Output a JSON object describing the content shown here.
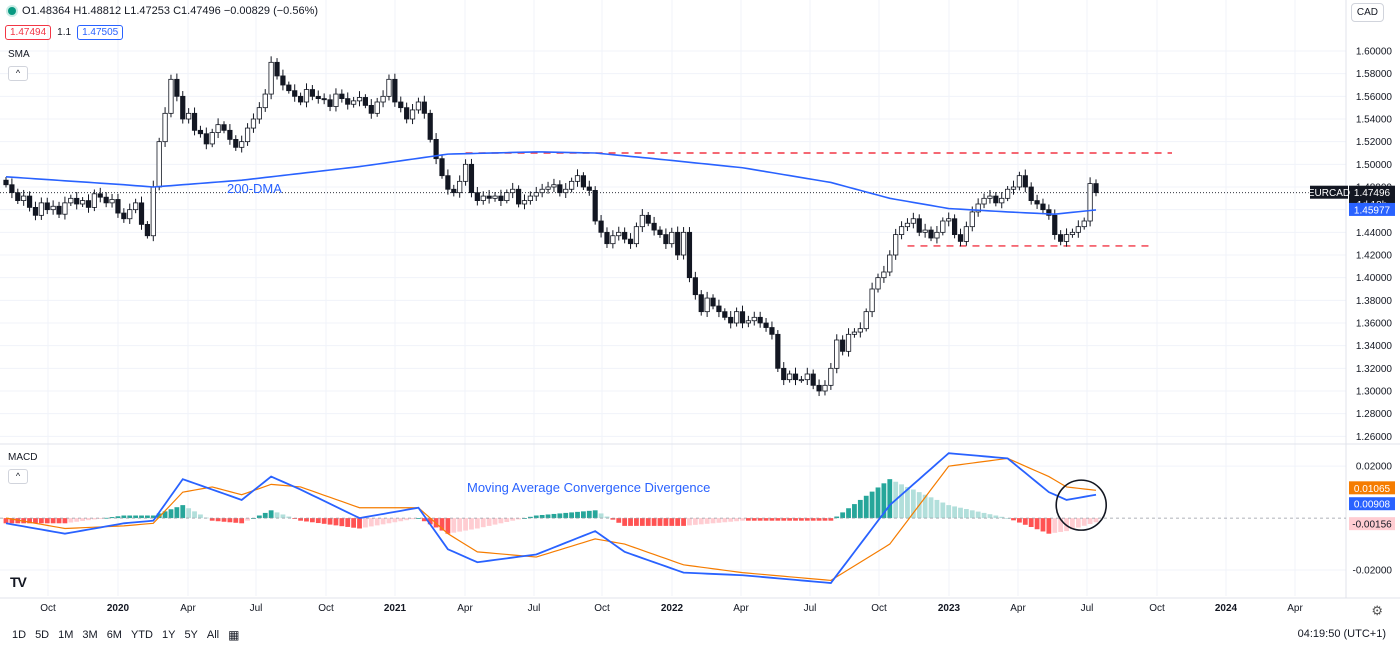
{
  "header": {
    "ohlc": "O1.48364 H1.48812 L1.47253 C1.47496 −0.00829 (−0.56%)",
    "bid": "1.47494",
    "spread": "1.1",
    "ask": "1.47505",
    "currency": "CAD",
    "sma_label": "SMA",
    "macd_label": "MACD",
    "collapse_icon": "chevron-up-icon"
  },
  "footer": {
    "ranges": [
      "1D",
      "5D",
      "1M",
      "3M",
      "6M",
      "YTD",
      "1Y",
      "5Y",
      "All"
    ],
    "clock": "04:19:50 (UTC+1)",
    "logo": "TV"
  },
  "colors": {
    "up": "#089981",
    "down": "#131722",
    "sma": "#2962ff",
    "signal": "#f57c00",
    "macd": "#2962ff",
    "hist_pos_strong": "#26a69a",
    "hist_pos_weak": "#b2dfdb",
    "hist_neg_strong": "#ff5252",
    "hist_neg_weak": "#ffcdd2",
    "level": "#f23645"
  },
  "chart_data": [
    {
      "type": "candlestick",
      "title": "",
      "annotation": "200-DMA",
      "symbol": "EURCAD",
      "last_price": "1.47496",
      "countdown": "1d 18h",
      "sma_value": "1.45977",
      "x_ticks": [
        "Oct",
        "2020",
        "Apr",
        "Jul",
        "Oct",
        "2021",
        "Apr",
        "Jul",
        "Oct",
        "2022",
        "Apr",
        "Jul",
        "Oct",
        "2023",
        "Apr",
        "Jul",
        "Oct",
        "2024",
        "Apr"
      ],
      "y_ticks": [
        "1.60000",
        "1.58000",
        "1.56000",
        "1.54000",
        "1.52000",
        "1.50000",
        "1.48000",
        "1.46000",
        "1.44000",
        "1.42000",
        "1.40000",
        "1.38000",
        "1.36000",
        "1.34000",
        "1.32000",
        "1.30000",
        "1.28000",
        "1.26000"
      ],
      "ylim": [
        1.255,
        1.615
      ],
      "resistance": 1.51,
      "support": 1.428,
      "close_path": [
        [
          0,
          1.482
        ],
        [
          1,
          1.475
        ],
        [
          2,
          1.468
        ],
        [
          3,
          1.472
        ],
        [
          4,
          1.462
        ],
        [
          5,
          1.455
        ],
        [
          6,
          1.466
        ],
        [
          7,
          1.46
        ],
        [
          8,
          1.463
        ],
        [
          9,
          1.456
        ],
        [
          10,
          1.466
        ],
        [
          11,
          1.47
        ],
        [
          12,
          1.465
        ],
        [
          13,
          1.468
        ],
        [
          14,
          1.462
        ],
        [
          15,
          1.474
        ],
        [
          16,
          1.471
        ],
        [
          17,
          1.466
        ],
        [
          18,
          1.469
        ],
        [
          19,
          1.457
        ],
        [
          20,
          1.452
        ],
        [
          21,
          1.46
        ],
        [
          22,
          1.466
        ],
        [
          23,
          1.447
        ],
        [
          24,
          1.437
        ],
        [
          25,
          1.48
        ],
        [
          26,
          1.52
        ],
        [
          27,
          1.545
        ],
        [
          28,
          1.575
        ],
        [
          29,
          1.56
        ],
        [
          30,
          1.54
        ],
        [
          31,
          1.545
        ],
        [
          32,
          1.53
        ],
        [
          33,
          1.527
        ],
        [
          34,
          1.518
        ],
        [
          35,
          1.528
        ],
        [
          36,
          1.535
        ],
        [
          37,
          1.53
        ],
        [
          38,
          1.522
        ],
        [
          39,
          1.515
        ],
        [
          40,
          1.52
        ],
        [
          41,
          1.532
        ],
        [
          42,
          1.54
        ],
        [
          43,
          1.55
        ],
        [
          44,
          1.562
        ],
        [
          45,
          1.59
        ],
        [
          46,
          1.578
        ],
        [
          47,
          1.57
        ],
        [
          48,
          1.565
        ],
        [
          49,
          1.56
        ],
        [
          50,
          1.555
        ],
        [
          51,
          1.566
        ],
        [
          52,
          1.56
        ],
        [
          53,
          1.558
        ],
        [
          54,
          1.557
        ],
        [
          55,
          1.551
        ],
        [
          56,
          1.562
        ],
        [
          57,
          1.558
        ],
        [
          58,
          1.553
        ],
        [
          59,
          1.556
        ],
        [
          60,
          1.559
        ],
        [
          61,
          1.552
        ],
        [
          62,
          1.545
        ],
        [
          63,
          1.555
        ],
        [
          64,
          1.56
        ],
        [
          65,
          1.575
        ],
        [
          66,
          1.555
        ],
        [
          67,
          1.55
        ],
        [
          68,
          1.54
        ],
        [
          69,
          1.548
        ],
        [
          70,
          1.555
        ],
        [
          71,
          1.545
        ],
        [
          72,
          1.522
        ],
        [
          73,
          1.505
        ],
        [
          74,
          1.49
        ],
        [
          75,
          1.478
        ],
        [
          76,
          1.475
        ],
        [
          77,
          1.485
        ],
        [
          78,
          1.5
        ],
        [
          79,
          1.475
        ],
        [
          80,
          1.468
        ],
        [
          81,
          1.472
        ],
        [
          82,
          1.47
        ],
        [
          83,
          1.472
        ],
        [
          84,
          1.468
        ],
        [
          85,
          1.475
        ],
        [
          86,
          1.478
        ],
        [
          87,
          1.465
        ],
        [
          88,
          1.468
        ],
        [
          89,
          1.472
        ],
        [
          90,
          1.475
        ],
        [
          91,
          1.478
        ],
        [
          92,
          1.48
        ],
        [
          93,
          1.482
        ],
        [
          94,
          1.475
        ],
        [
          95,
          1.478
        ],
        [
          96,
          1.485
        ],
        [
          97,
          1.49
        ],
        [
          98,
          1.48
        ],
        [
          99,
          1.477
        ],
        [
          100,
          1.45
        ],
        [
          101,
          1.44
        ],
        [
          102,
          1.43
        ],
        [
          103,
          1.437
        ],
        [
          104,
          1.44
        ],
        [
          105,
          1.434
        ],
        [
          106,
          1.43
        ],
        [
          107,
          1.445
        ],
        [
          108,
          1.455
        ],
        [
          109,
          1.448
        ],
        [
          110,
          1.442
        ],
        [
          111,
          1.438
        ],
        [
          112,
          1.43
        ],
        [
          113,
          1.44
        ],
        [
          114,
          1.42
        ],
        [
          115,
          1.44
        ],
        [
          116,
          1.4
        ],
        [
          117,
          1.385
        ],
        [
          118,
          1.37
        ],
        [
          119,
          1.382
        ],
        [
          120,
          1.375
        ],
        [
          121,
          1.37
        ],
        [
          122,
          1.365
        ],
        [
          123,
          1.36
        ],
        [
          124,
          1.37
        ],
        [
          125,
          1.36
        ],
        [
          126,
          1.362
        ],
        [
          127,
          1.365
        ],
        [
          128,
          1.36
        ],
        [
          129,
          1.356
        ],
        [
          130,
          1.35
        ],
        [
          131,
          1.32
        ],
        [
          132,
          1.31
        ],
        [
          133,
          1.315
        ],
        [
          134,
          1.31
        ],
        [
          135,
          1.31
        ],
        [
          136,
          1.315
        ],
        [
          137,
          1.305
        ],
        [
          138,
          1.3
        ],
        [
          139,
          1.305
        ],
        [
          140,
          1.32
        ],
        [
          141,
          1.345
        ],
        [
          142,
          1.335
        ],
        [
          143,
          1.35
        ],
        [
          144,
          1.352
        ],
        [
          145,
          1.355
        ],
        [
          146,
          1.37
        ],
        [
          147,
          1.39
        ],
        [
          148,
          1.4
        ],
        [
          149,
          1.405
        ],
        [
          150,
          1.42
        ],
        [
          151,
          1.438
        ],
        [
          152,
          1.445
        ],
        [
          153,
          1.448
        ],
        [
          154,
          1.452
        ],
        [
          155,
          1.44
        ],
        [
          156,
          1.442
        ],
        [
          157,
          1.435
        ],
        [
          158,
          1.44
        ],
        [
          159,
          1.45
        ],
        [
          160,
          1.452
        ],
        [
          161,
          1.438
        ],
        [
          162,
          1.432
        ],
        [
          163,
          1.445
        ],
        [
          164,
          1.458
        ],
        [
          165,
          1.465
        ],
        [
          166,
          1.47
        ],
        [
          167,
          1.472
        ],
        [
          168,
          1.466
        ],
        [
          169,
          1.47
        ],
        [
          170,
          1.478
        ],
        [
          171,
          1.48
        ],
        [
          172,
          1.49
        ],
        [
          173,
          1.48
        ],
        [
          174,
          1.468
        ],
        [
          175,
          1.465
        ],
        [
          176,
          1.46
        ],
        [
          177,
          1.455
        ],
        [
          178,
          1.438
        ],
        [
          179,
          1.432
        ],
        [
          180,
          1.438
        ],
        [
          181,
          1.44
        ],
        [
          182,
          1.445
        ],
        [
          183,
          1.45
        ],
        [
          184,
          1.483
        ],
        [
          185,
          1.475
        ]
      ],
      "sma_path": [
        [
          0,
          1.489
        ],
        [
          20,
          1.482
        ],
        [
          25,
          1.48
        ],
        [
          40,
          1.486
        ],
        [
          60,
          1.498
        ],
        [
          75,
          1.509
        ],
        [
          90,
          1.511
        ],
        [
          100,
          1.51
        ],
        [
          110,
          1.505
        ],
        [
          125,
          1.497
        ],
        [
          140,
          1.484
        ],
        [
          150,
          1.47
        ],
        [
          160,
          1.461
        ],
        [
          170,
          1.458
        ],
        [
          178,
          1.456
        ],
        [
          185,
          1.4598
        ]
      ]
    },
    {
      "type": "macd",
      "title": "Moving Average Convergence Divergence",
      "ylim": [
        -0.03,
        0.027
      ],
      "y_ticks": [
        "0.02000",
        "-0.02000"
      ],
      "signal_value": "0.01065",
      "macd_value": "0.00908",
      "hist_value": "-0.00156",
      "macd_path": [
        [
          0,
          -0.002
        ],
        [
          10,
          -0.006
        ],
        [
          20,
          -0.002
        ],
        [
          25,
          -0.001
        ],
        [
          30,
          0.015
        ],
        [
          35,
          0.011
        ],
        [
          40,
          0.007
        ],
        [
          45,
          0.016
        ],
        [
          50,
          0.011
        ],
        [
          60,
          0.0
        ],
        [
          70,
          0.004
        ],
        [
          75,
          -0.012
        ],
        [
          80,
          -0.017
        ],
        [
          90,
          -0.014
        ],
        [
          100,
          -0.005
        ],
        [
          105,
          -0.013
        ],
        [
          115,
          -0.021
        ],
        [
          125,
          -0.022
        ],
        [
          140,
          -0.025
        ],
        [
          150,
          0.005
        ],
        [
          160,
          0.025
        ],
        [
          170,
          0.023
        ],
        [
          177,
          0.01
        ],
        [
          180,
          0.007
        ],
        [
          185,
          0.009
        ]
      ],
      "signal_path": [
        [
          0,
          0.0
        ],
        [
          10,
          -0.004
        ],
        [
          20,
          -0.003
        ],
        [
          25,
          -0.002
        ],
        [
          30,
          0.01
        ],
        [
          35,
          0.012
        ],
        [
          40,
          0.009
        ],
        [
          45,
          0.013
        ],
        [
          50,
          0.012
        ],
        [
          60,
          0.004
        ],
        [
          70,
          0.004
        ],
        [
          75,
          -0.006
        ],
        [
          80,
          -0.013
        ],
        [
          90,
          -0.015
        ],
        [
          100,
          -0.008
        ],
        [
          105,
          -0.01
        ],
        [
          115,
          -0.018
        ],
        [
          125,
          -0.021
        ],
        [
          140,
          -0.024
        ],
        [
          150,
          -0.01
        ],
        [
          160,
          0.02
        ],
        [
          170,
          0.023
        ],
        [
          177,
          0.016
        ],
        [
          180,
          0.012
        ],
        [
          185,
          0.0107
        ]
      ],
      "hist_path": [
        [
          0,
          -0.002
        ],
        [
          10,
          -0.002
        ],
        [
          20,
          0.001
        ],
        [
          25,
          0.001
        ],
        [
          30,
          0.005
        ],
        [
          35,
          -0.001
        ],
        [
          40,
          -0.002
        ],
        [
          45,
          0.003
        ],
        [
          50,
          -0.001
        ],
        [
          60,
          -0.004
        ],
        [
          70,
          0.0
        ],
        [
          75,
          -0.006
        ],
        [
          80,
          -0.004
        ],
        [
          90,
          0.001
        ],
        [
          100,
          0.003
        ],
        [
          105,
          -0.003
        ],
        [
          115,
          -0.003
        ],
        [
          125,
          -0.001
        ],
        [
          140,
          -0.001
        ],
        [
          150,
          0.015
        ],
        [
          160,
          0.005
        ],
        [
          170,
          0.0
        ],
        [
          177,
          -0.006
        ],
        [
          180,
          -0.005
        ],
        [
          185,
          -0.0016
        ]
      ]
    }
  ]
}
